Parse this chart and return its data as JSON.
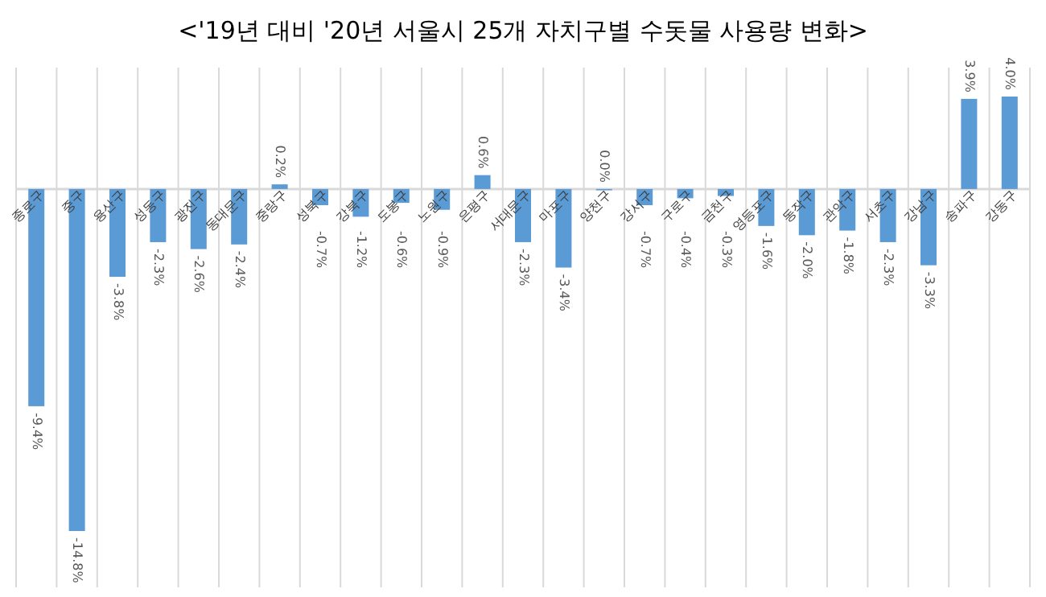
{
  "chart_data": {
    "type": "bar",
    "title": "<'19년 대비 '20년 서울시 25개 자치구별 수돗물 사용량 변화>",
    "categories": [
      "종로구",
      "중구",
      "용산구",
      "성동구",
      "광진구",
      "동대문구",
      "중랑구",
      "성북구",
      "강북구",
      "도봉구",
      "노원구",
      "은평구",
      "서대문구",
      "마포구",
      "양천구",
      "강서구",
      "구로구",
      "금천구",
      "영등포구",
      "동작구",
      "관악구",
      "서초구",
      "강남구",
      "송파구",
      "강동구"
    ],
    "values": [
      -9.4,
      -14.8,
      -3.8,
      -2.3,
      -2.6,
      -2.4,
      0.2,
      -0.7,
      -1.2,
      -0.6,
      -0.9,
      0.6,
      -2.3,
      -3.4,
      0.0,
      -0.7,
      -0.4,
      -0.3,
      -1.6,
      -2.0,
      -1.8,
      -2.3,
      -3.3,
      3.9,
      4.0
    ],
    "value_labels": [
      "-9.4%",
      "-14.8%",
      "-3.8%",
      "-2.3%",
      "-2.6%",
      "-2.4%",
      "0.2%",
      "-0.7%",
      "-1.2%",
      "-0.6%",
      "-0.9%",
      "0.6%",
      "-2.3%",
      "-3.4%",
      "0.0%",
      "-0.7%",
      "-0.4%",
      "-0.3%",
      "-1.6%",
      "-2.0%",
      "-1.8%",
      "-2.3%",
      "-3.3%",
      "3.9%",
      "4.0%"
    ],
    "color": "#5b9bd5",
    "grid": "x"
  }
}
